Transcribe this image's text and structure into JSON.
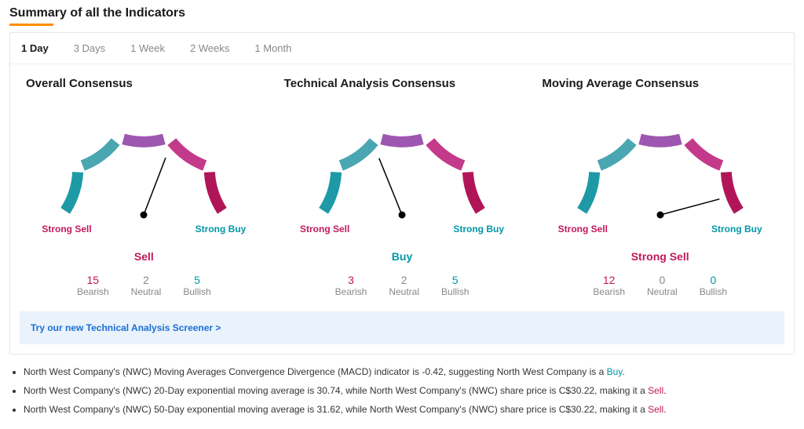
{
  "title": "Summary of all the Indicators",
  "tabs": [
    {
      "label": "1 Day",
      "active": true
    },
    {
      "label": "3 Days",
      "active": false
    },
    {
      "label": "1 Week",
      "active": false
    },
    {
      "label": "2 Weeks",
      "active": false
    },
    {
      "label": "1 Month",
      "active": false
    }
  ],
  "gauge_style": {
    "segments": 5,
    "segment_colors": [
      "#b01657",
      "#c43a8a",
      "#9e57b0",
      "#4aa6b0",
      "#1e9aa6"
    ],
    "gap_deg": 6,
    "arc_width": 14,
    "needle_color": "#000000",
    "label_strong_sell": "Strong Sell",
    "label_strong_buy": "Strong Buy",
    "color_strong_sell": "#c2185b",
    "color_strong_buy": "#0097a7",
    "background": "#ffffff"
  },
  "gauges": [
    {
      "title": "Overall Consensus",
      "needle_deg": 69,
      "verdict": "Sell",
      "verdict_color": "#c2185b",
      "bearish": 15,
      "bearish_color": "#c2185b",
      "neutral": 2,
      "neutral_color": "#888888",
      "bullish": 5,
      "bullish_color": "#0097a7"
    },
    {
      "title": "Technical Analysis Consensus",
      "needle_deg": 112,
      "verdict": "Buy",
      "verdict_color": "#0097a7",
      "bearish": 3,
      "bearish_color": "#c2185b",
      "neutral": 2,
      "neutral_color": "#888888",
      "bullish": 5,
      "bullish_color": "#0097a7"
    },
    {
      "title": "Moving Average Consensus",
      "needle_deg": 15,
      "verdict": "Strong Sell",
      "verdict_color": "#c2185b",
      "bearish": 12,
      "bearish_color": "#c2185b",
      "neutral": 0,
      "neutral_color": "#888888",
      "bullish": 0,
      "bullish_color": "#0097a7"
    }
  ],
  "counts_labels": {
    "bearish": "Bearish",
    "neutral": "Neutral",
    "bullish": "Bullish"
  },
  "promo": {
    "text": "Try our new Technical Analysis Screener >"
  },
  "notes": [
    {
      "pre": "North West Company's (NWC) Moving Averages Convergence Divergence (MACD) indicator is -0.42, suggesting North West Company is a ",
      "tag": "Buy",
      "tag_class": "buy",
      "post": "."
    },
    {
      "pre": "North West Company's (NWC) 20-Day exponential moving average is 30.74, while North West Company's (NWC) share price is C$30.22, making it a ",
      "tag": "Sell",
      "tag_class": "sell",
      "post": "."
    },
    {
      "pre": "North West Company's (NWC) 50-Day exponential moving average is 31.62, while North West Company's (NWC) share price is C$30.22, making it a ",
      "tag": "Sell",
      "tag_class": "sell",
      "post": "."
    }
  ]
}
